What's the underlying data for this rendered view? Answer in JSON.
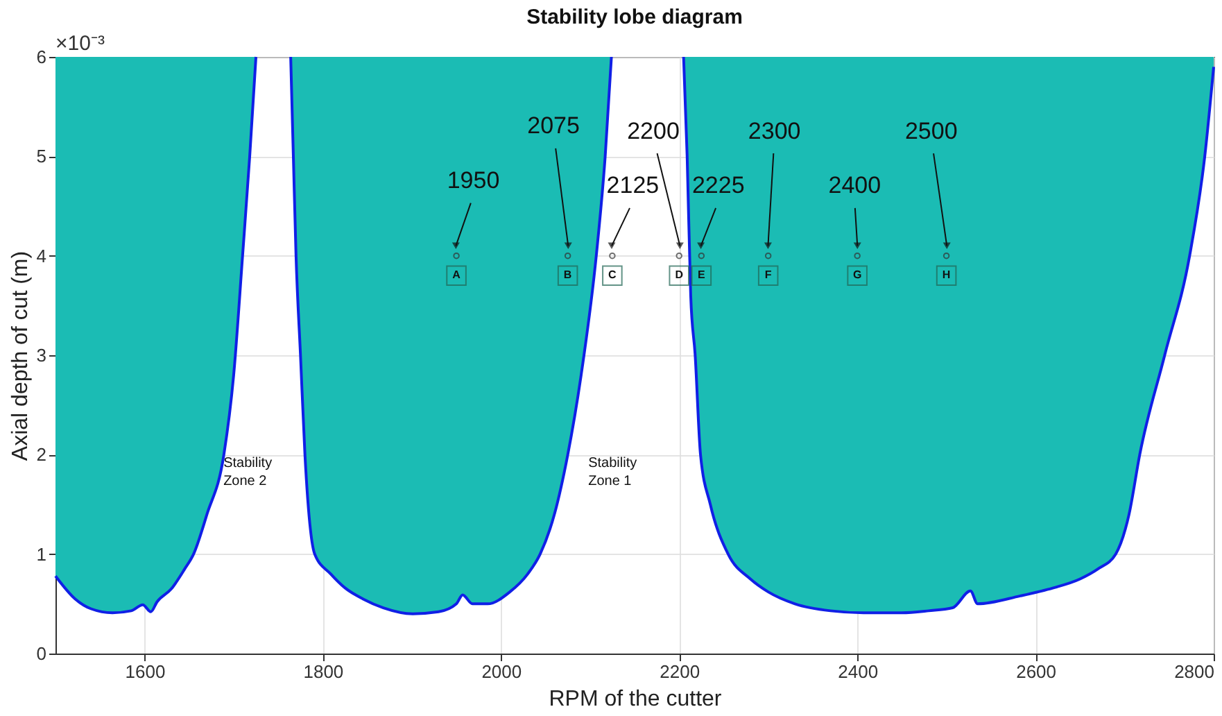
{
  "chart_data": {
    "type": "line",
    "title": "Stability lobe diagram",
    "xlabel": "RPM of the cutter",
    "ylabel": "Axial depth of cut (m)",
    "xlim": [
      1500,
      2800
    ],
    "xticks": [
      1600,
      1800,
      2000,
      2200,
      2400,
      2600,
      2800
    ],
    "ylim": [
      0,
      6
    ],
    "yticks": [
      0,
      1,
      2,
      3,
      4,
      5,
      6
    ],
    "grid": true,
    "colors": [
      "#1bbcb4"
    ],
    "series": [
      {
        "color": "#1020e6",
        "x": [
          1500,
          1522,
          1540,
          1564,
          1585,
          1598,
          1607,
          1614,
          1630,
          1645,
          1655,
          1670,
          1689,
          1700,
          1710,
          1718,
          1725,
          1745,
          1764,
          1767,
          1770,
          1775,
          1780,
          1791,
          1809,
          1825,
          1845,
          1868,
          1901,
          1930,
          1950,
          1957,
          1968,
          1985,
          2010,
          2030,
          2044,
          2060,
          2075,
          2090,
          2107,
          2117,
          2124,
          2165,
          2205,
          2209,
          2213,
          2218,
          2224,
          2235,
          2255,
          2280,
          2300,
          2330,
          2370,
          2407,
          2450,
          2480,
          2507,
          2527,
          2535,
          2583,
          2620,
          2650,
          2670,
          2690,
          2705,
          2717,
          2745,
          2773,
          2790,
          2800
        ],
        "values": [
          0.78,
          0.55,
          0.45,
          0.41,
          0.43,
          0.49,
          0.42,
          0.52,
          0.65,
          0.85,
          1.0,
          1.4,
          2.0,
          2.8,
          4.0,
          5.0,
          6.0,
          null,
          6.0,
          5.0,
          4.0,
          3.0,
          2.0,
          1.0,
          0.8,
          0.66,
          0.55,
          0.46,
          0.4,
          0.42,
          0.5,
          0.59,
          0.5,
          0.5,
          0.62,
          0.8,
          1.0,
          1.4,
          2.0,
          2.8,
          4.0,
          5.0,
          6.0,
          null,
          6.0,
          5.0,
          3.6,
          3.0,
          2.0,
          1.5,
          1.0,
          0.75,
          0.62,
          0.5,
          0.43,
          0.41,
          0.41,
          0.43,
          0.46,
          0.63,
          0.5,
          0.58,
          0.66,
          0.75,
          0.85,
          1.0,
          1.4,
          2.0,
          3.0,
          4.0,
          5.0,
          5.9
        ]
      },
      {
        "type": "scatter",
        "color": "#333333",
        "marker": "circle",
        "x": [
          1950,
          2075,
          2125,
          2200,
          2225,
          2300,
          2400,
          2500
        ],
        "values": [
          4,
          4,
          4,
          4,
          4,
          4,
          4,
          4
        ]
      }
    ],
    "annotations": [
      {
        "text": "1950",
        "x": 1950,
        "y": 4
      },
      {
        "text": "2075",
        "x": 2075,
        "y": 4
      },
      {
        "text": "2125",
        "x": 2125,
        "y": 4
      },
      {
        "text": "2200",
        "x": 2200,
        "y": 4
      },
      {
        "text": "2225",
        "x": 2225,
        "y": 4
      },
      {
        "text": "2300",
        "x": 2300,
        "y": 4
      },
      {
        "text": "2400",
        "x": 2400,
        "y": 4
      },
      {
        "text": "2500",
        "x": 2500,
        "y": 4
      },
      {
        "text": "A",
        "x": 1950,
        "y": 4
      },
      {
        "text": "B",
        "x": 2075,
        "y": 4
      },
      {
        "text": "C",
        "x": 2125,
        "y": 4
      },
      {
        "text": "D",
        "x": 2200,
        "y": 4
      },
      {
        "text": "E",
        "x": 2225,
        "y": 4
      },
      {
        "text": "F",
        "x": 2300,
        "y": 4
      },
      {
        "text": "G",
        "x": 2400,
        "y": 4
      },
      {
        "text": "H",
        "x": 2500,
        "y": 4
      },
      "Stability\nZone 2",
      "Stability\nZone 1",
      "×10⁻³"
    ]
  }
}
